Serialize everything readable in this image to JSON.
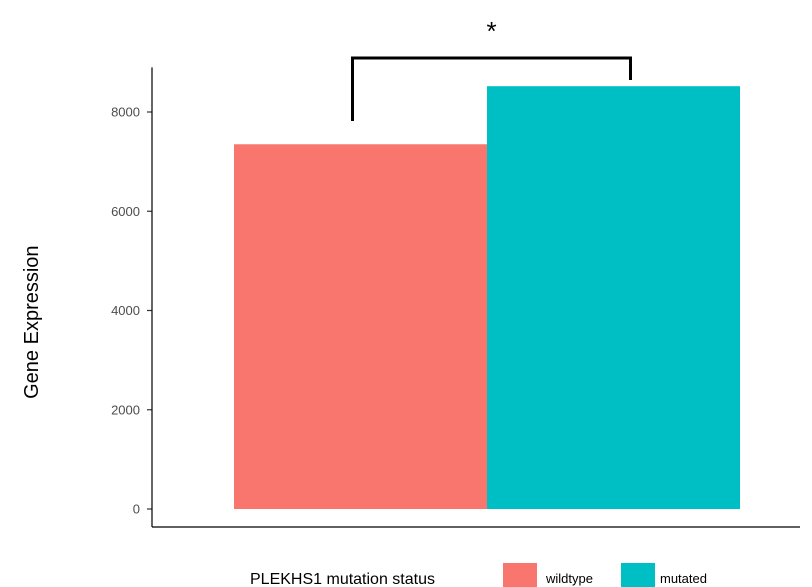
{
  "chart_data": {
    "type": "bar",
    "categories": [
      "wildtype",
      "mutated"
    ],
    "values": [
      7350,
      8520
    ],
    "colors": [
      "#F8766D",
      "#00BFC4"
    ],
    "xlabel": "",
    "ylabel": "Gene Expression",
    "ylim": [
      0,
      8900
    ],
    "yticks": [
      0,
      2000,
      4000,
      6000,
      8000
    ],
    "ytick_labels": [
      "0",
      "2000",
      "4000",
      "6000",
      "8000"
    ],
    "grid": false,
    "legend": {
      "title": "PLEKHS1 mutation status",
      "position": "bottom",
      "entries": [
        "wildtype",
        "mutated"
      ]
    },
    "annotation": {
      "text": "*",
      "type": "significance-bracket",
      "between": [
        "wildtype",
        "mutated"
      ]
    }
  }
}
